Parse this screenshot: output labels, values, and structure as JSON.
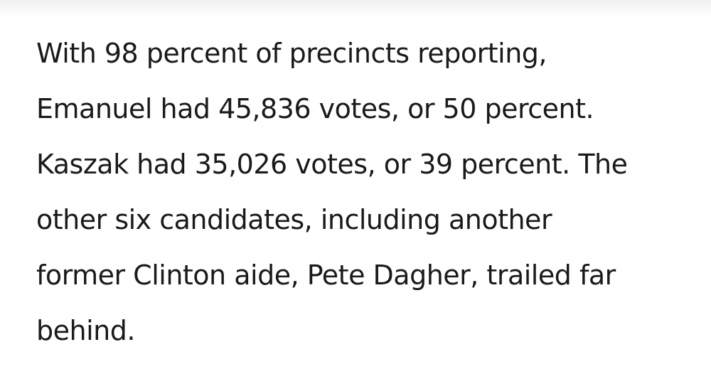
{
  "article": {
    "lines": [
      "With 98 percent of precincts reporting,",
      "Emanuel had 45,836 votes, or 50 percent.",
      "Kaszak had 35,026 votes, or 39 percent. The",
      "other six candidates, including another",
      "former Clinton aide, Pete Dagher, trailed far",
      "behind."
    ]
  },
  "colors": {
    "text": "#1a1a1a",
    "background": "#ffffff"
  }
}
